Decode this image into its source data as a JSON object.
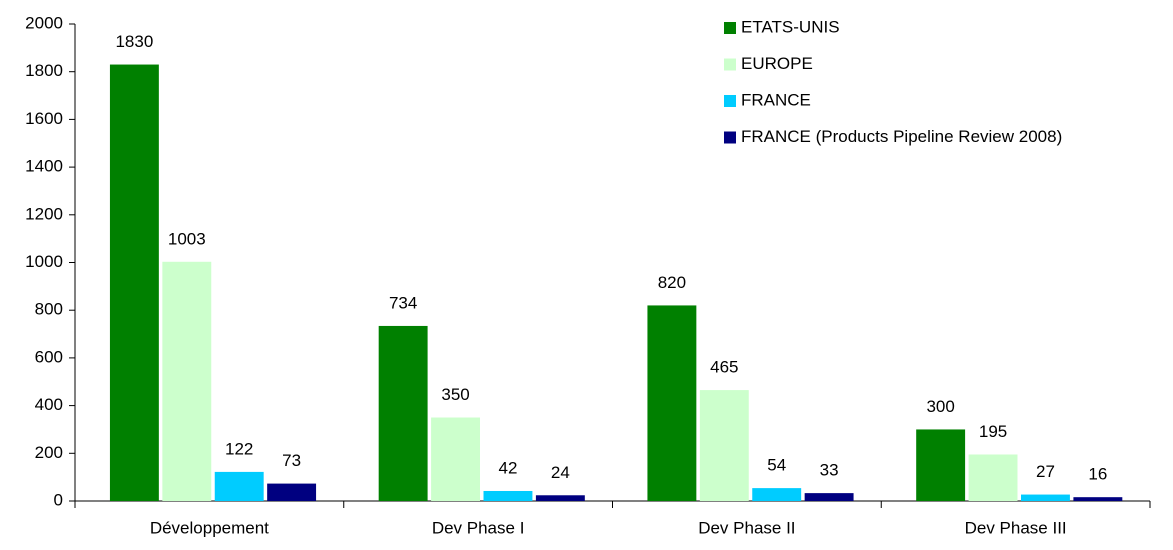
{
  "chart_data": {
    "type": "bar",
    "categories": [
      "Développement",
      "Dev Phase I",
      "Dev Phase II",
      "Dev Phase III"
    ],
    "series": [
      {
        "name": "ETATS-UNIS",
        "color": "#008000",
        "values": [
          1830,
          734,
          820,
          300
        ]
      },
      {
        "name": "EUROPE",
        "color": "#ccffcc",
        "values": [
          1003,
          350,
          465,
          195
        ]
      },
      {
        "name": "FRANCE",
        "color": "#00ccff",
        "values": [
          122,
          42,
          54,
          27
        ]
      },
      {
        "name": "FRANCE (Products Pipeline Review 2008)",
        "color": "#000080",
        "values": [
          73,
          24,
          33,
          16
        ]
      }
    ],
    "ylim": [
      0,
      2000
    ],
    "yticks": [
      0,
      200,
      400,
      600,
      800,
      1000,
      1200,
      1400,
      1600,
      1800,
      2000
    ],
    "grid": false,
    "legend": "top-right"
  }
}
